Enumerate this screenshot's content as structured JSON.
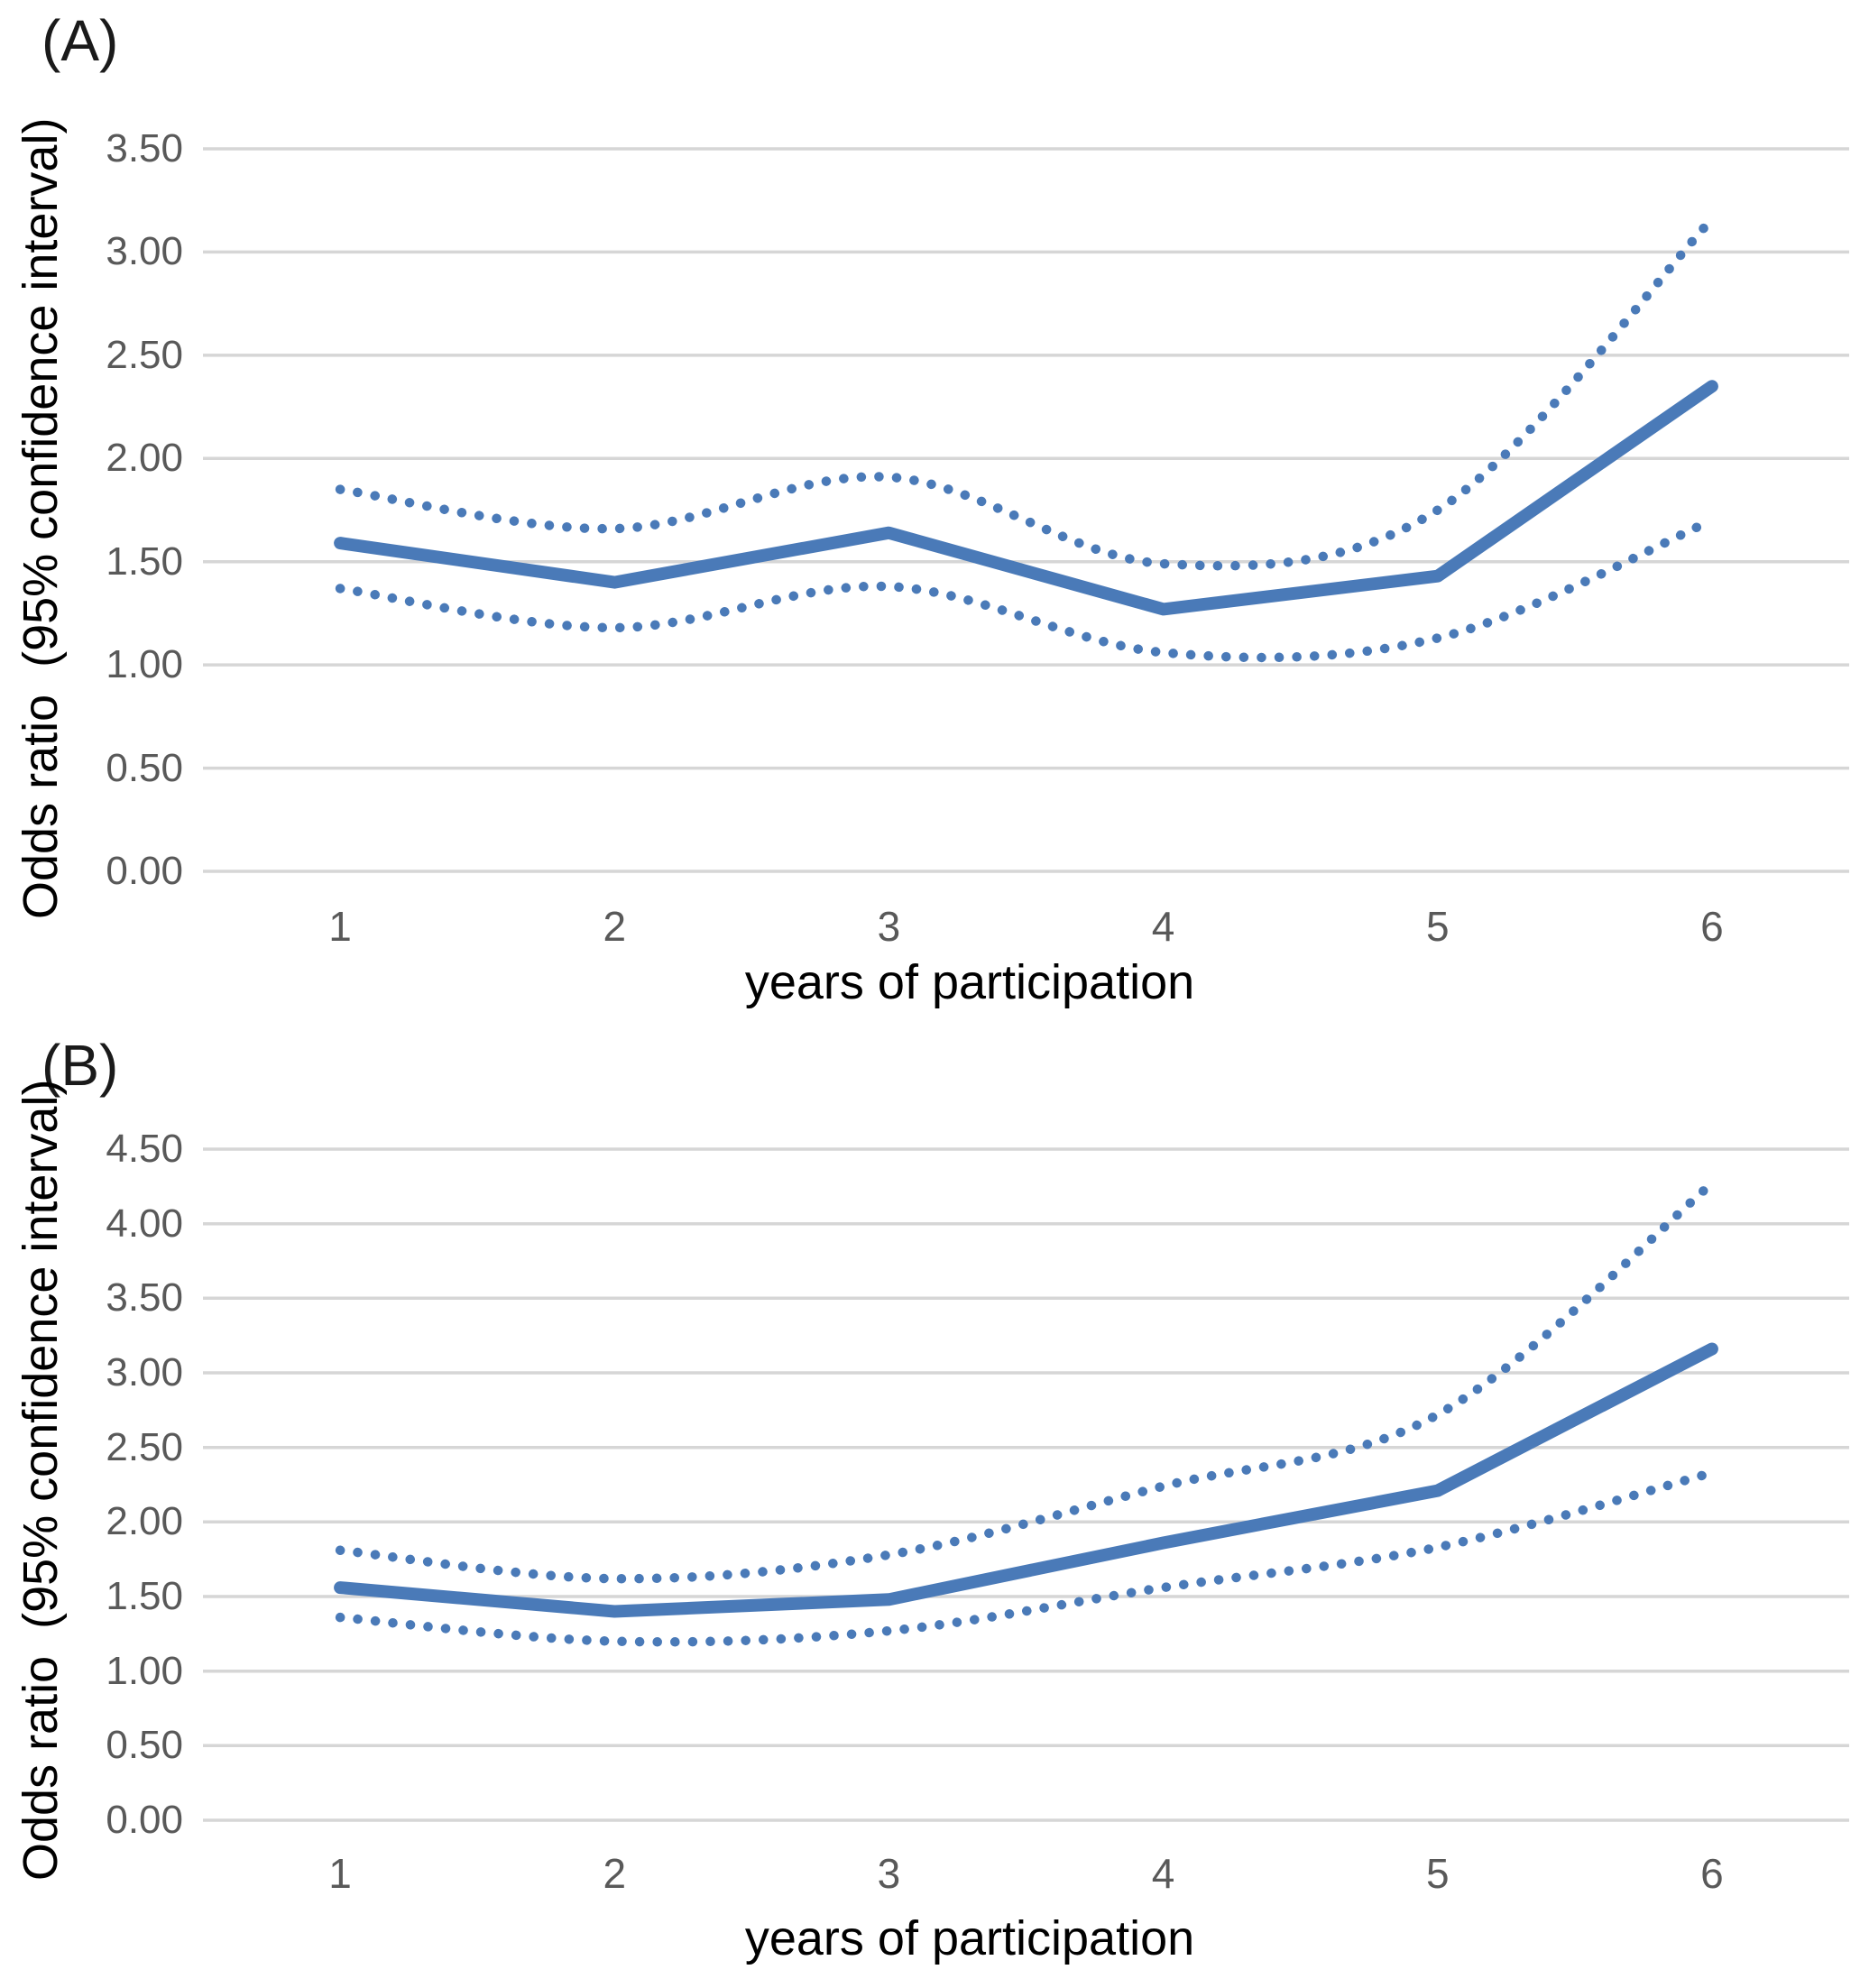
{
  "colors": {
    "line": "#4a7ab8",
    "gridline": "#d6d6d6",
    "tick_text": "#595959",
    "axis_text": "#000000"
  },
  "chart_data": [
    {
      "type": "line",
      "panel_label": "(A)",
      "ylabel": "Odds ratio  (95% confidence interval)",
      "xlabel": "years of participation",
      "x": [
        1,
        2,
        3,
        4,
        5,
        6
      ],
      "xticks": [
        "1",
        "2",
        "3",
        "4",
        "5",
        "6"
      ],
      "yticks": [
        "3.50",
        "3.00",
        "2.50",
        "2.00",
        "1.50",
        "1.00",
        "0.50",
        "0.00"
      ],
      "ylim": [
        0,
        3.5
      ],
      "ytick_step": 0.5,
      "grid": true,
      "legend": "none",
      "color": "#4a7ab8",
      "series": [
        {
          "name": "odds ratio",
          "key": "odds-ratio-line",
          "style": "solid",
          "values": [
            1.59,
            1.4,
            1.64,
            1.27,
            1.43,
            2.35
          ]
        },
        {
          "name": "upper 95% CI",
          "key": "upper-ci-line",
          "style": "dotted",
          "values": [
            1.85,
            1.66,
            1.91,
            1.49,
            1.75,
            3.16
          ]
        },
        {
          "name": "lower 95% CI",
          "key": "lower-ci-line",
          "style": "dotted",
          "values": [
            1.37,
            1.18,
            1.38,
            1.06,
            1.13,
            1.7
          ]
        }
      ]
    },
    {
      "type": "line",
      "panel_label": "(B)",
      "ylabel": "Odds ratio  (95% confidence interval)",
      "xlabel": "years of participation",
      "x": [
        1,
        2,
        3,
        4,
        5,
        6
      ],
      "xticks": [
        "1",
        "2",
        "3",
        "4",
        "5",
        "6"
      ],
      "yticks": [
        "4.50",
        "4.00",
        "3.50",
        "3.00",
        "2.50",
        "2.00",
        "1.50",
        "1.00",
        "0.50",
        "0.00"
      ],
      "ylim": [
        0,
        4.5
      ],
      "ytick_step": 0.5,
      "grid": true,
      "legend": "none",
      "color": "#4a7ab8",
      "series": [
        {
          "name": "odds ratio",
          "key": "odds-ratio-line",
          "style": "solid",
          "values": [
            1.56,
            1.4,
            1.48,
            1.86,
            2.21,
            3.16
          ]
        },
        {
          "name": "upper 95% CI",
          "key": "upper-ci-line",
          "style": "dotted",
          "values": [
            1.81,
            1.62,
            1.78,
            2.24,
            2.72,
            4.27
          ]
        },
        {
          "name": "lower 95% CI",
          "key": "lower-ci-line",
          "style": "dotted",
          "values": [
            1.36,
            1.2,
            1.27,
            1.56,
            1.83,
            2.33
          ]
        }
      ]
    }
  ]
}
